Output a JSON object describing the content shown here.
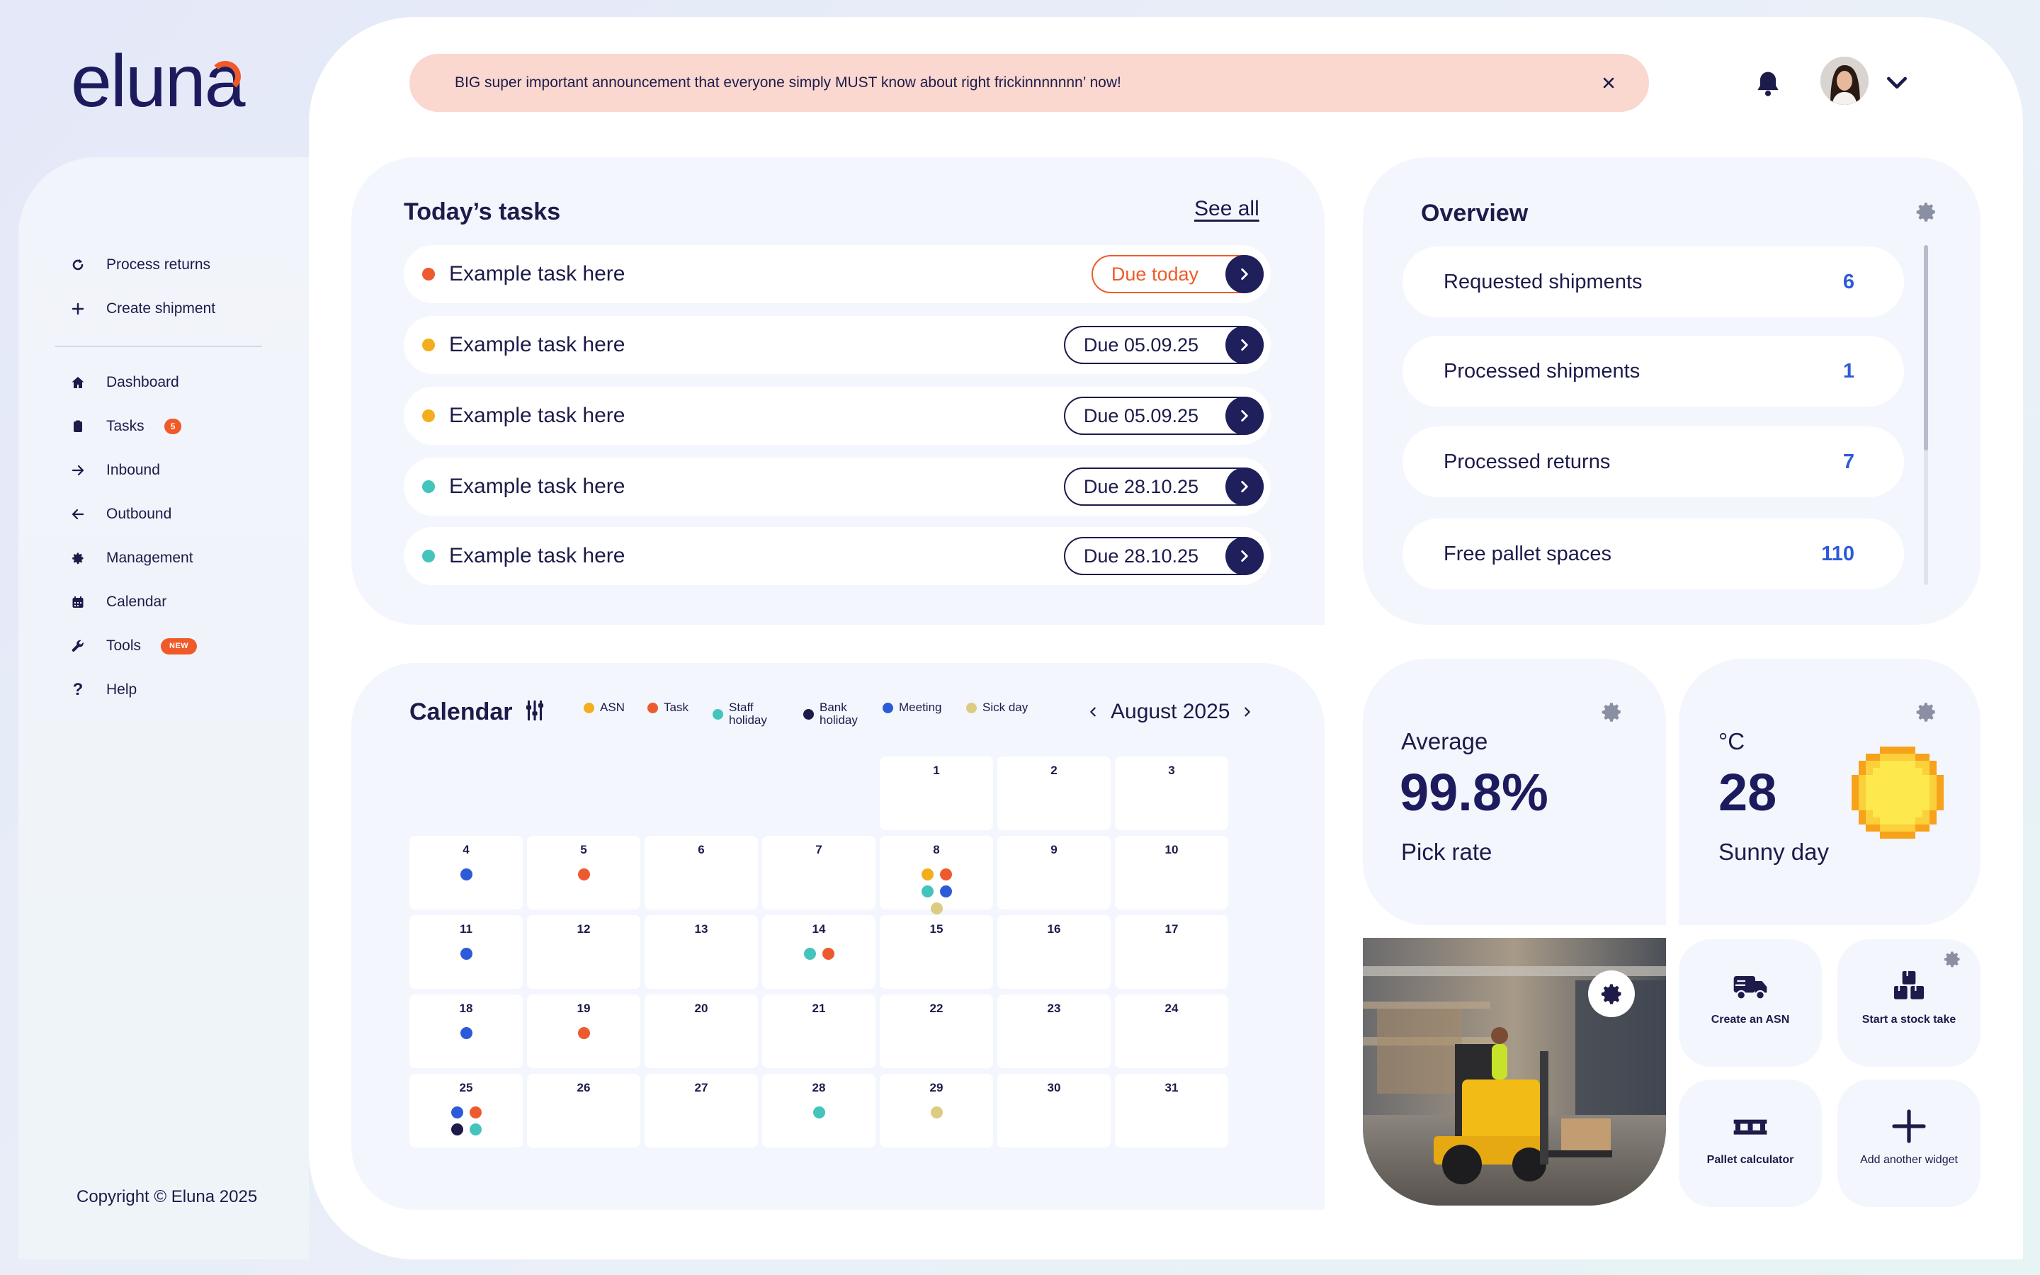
{
  "brand": {
    "logo_text": "eluna"
  },
  "announcement": {
    "text": "BIG super important announcement that everyone simply MUST know about right frickinnnnnnn’ now!"
  },
  "sidebar": {
    "quick": [
      {
        "label": "Process returns",
        "icon": "refresh-icon"
      },
      {
        "label": "Create shipment",
        "icon": "plus-icon"
      }
    ],
    "items": [
      {
        "label": "Dashboard",
        "icon": "home-icon"
      },
      {
        "label": "Tasks",
        "icon": "clipboard-icon",
        "badge": "5"
      },
      {
        "label": "Inbound",
        "icon": "arrow-right-icon"
      },
      {
        "label": "Outbound",
        "icon": "arrow-left-icon"
      },
      {
        "label": "Management",
        "icon": "gear-icon"
      },
      {
        "label": "Calendar",
        "icon": "calendar-icon"
      },
      {
        "label": "Tools",
        "icon": "wrench-icon",
        "badge": "NEW"
      },
      {
        "label": "Help",
        "icon": "question-icon"
      }
    ],
    "copyright": "Copyright © Eluna 2025"
  },
  "tasks": {
    "title": "Today’s tasks",
    "see_all": "See all",
    "items": [
      {
        "name": "Example task here",
        "due": "Due today",
        "color": "#ee5a2f",
        "urgent": true
      },
      {
        "name": "Example task here",
        "due": "Due 05.09.25",
        "color": "#f4ad1c",
        "urgent": false
      },
      {
        "name": "Example task here",
        "due": "Due 05.09.25",
        "color": "#f4ad1c",
        "urgent": false
      },
      {
        "name": "Example task here",
        "due": "Due 28.10.25",
        "color": "#43c4bd",
        "urgent": false
      },
      {
        "name": "Example task here",
        "due": "Due 28.10.25",
        "color": "#43c4bd",
        "urgent": false
      }
    ]
  },
  "overview": {
    "title": "Overview",
    "rows": [
      {
        "label": "Requested shipments",
        "value": "6"
      },
      {
        "label": "Processed shipments",
        "value": "1"
      },
      {
        "label": "Processed returns",
        "value": "7"
      },
      {
        "label": "Free pallet spaces",
        "value": "110"
      }
    ]
  },
  "calendar": {
    "title": "Calendar",
    "month": "August 2025",
    "legend": [
      {
        "label": "ASN",
        "color": "#f4ad1c"
      },
      {
        "label": "Task",
        "color": "#ee5a2f"
      },
      {
        "label": "Staff\nholiday",
        "color": "#43c4bd"
      },
      {
        "label": "Bank\nholiday",
        "color": "#1c1b4a"
      },
      {
        "label": "Meeting",
        "color": "#2d5bd8"
      },
      {
        "label": "Sick day",
        "color": "#dccb82"
      }
    ],
    "days": [
      {
        "d": "1",
        "dots": []
      },
      {
        "d": "2",
        "dots": []
      },
      {
        "d": "3",
        "dots": []
      },
      {
        "d": "4",
        "dots": [
          "#2d5bd8"
        ]
      },
      {
        "d": "5",
        "dots": [
          "#ee5a2f"
        ]
      },
      {
        "d": "6",
        "dots": []
      },
      {
        "d": "7",
        "dots": []
      },
      {
        "d": "8",
        "dots": [
          "#f4ad1c",
          "#ee5a2f",
          "#43c4bd",
          "#2d5bd8",
          "#dccb82"
        ]
      },
      {
        "d": "9",
        "dots": []
      },
      {
        "d": "10",
        "dots": []
      },
      {
        "d": "11",
        "dots": [
          "#2d5bd8"
        ]
      },
      {
        "d": "12",
        "dots": []
      },
      {
        "d": "13",
        "dots": []
      },
      {
        "d": "14",
        "dots": [
          "#43c4bd",
          "#ee5a2f"
        ]
      },
      {
        "d": "15",
        "dots": []
      },
      {
        "d": "16",
        "dots": []
      },
      {
        "d": "17",
        "dots": []
      },
      {
        "d": "18",
        "dots": [
          "#2d5bd8"
        ]
      },
      {
        "d": "19",
        "dots": [
          "#ee5a2f"
        ]
      },
      {
        "d": "20",
        "dots": []
      },
      {
        "d": "21",
        "dots": []
      },
      {
        "d": "22",
        "dots": []
      },
      {
        "d": "23",
        "dots": []
      },
      {
        "d": "24",
        "dots": []
      },
      {
        "d": "25",
        "dots": [
          "#2d5bd8",
          "#ee5a2f",
          "#1c1b4a",
          "#43c4bd"
        ]
      },
      {
        "d": "26",
        "dots": []
      },
      {
        "d": "27",
        "dots": []
      },
      {
        "d": "28",
        "dots": [
          "#43c4bd"
        ]
      },
      {
        "d": "29",
        "dots": [
          "#dccb82"
        ]
      },
      {
        "d": "30",
        "dots": []
      },
      {
        "d": "31",
        "dots": []
      }
    ]
  },
  "pick_rate": {
    "caption": "Average",
    "value": "99.8%",
    "label": "Pick rate"
  },
  "weather": {
    "unit": "°C",
    "value": "28",
    "label": "Sunny day"
  },
  "quick_actions": [
    {
      "label": "Create an ASN",
      "icon": "truck-icon"
    },
    {
      "label": "Start a stock take",
      "icon": "boxes-icon"
    },
    {
      "label": "Pallet calculator",
      "icon": "pallet-icon"
    },
    {
      "label": "Add another widget",
      "icon": "plus-icon"
    }
  ]
}
